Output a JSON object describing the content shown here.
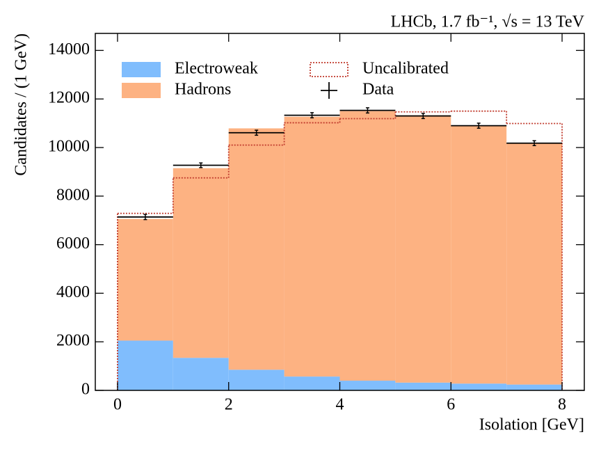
{
  "chart_data": {
    "type": "histogram",
    "title": "LHCb, 1.7 fb⁻¹, √s = 13 TeV",
    "x_label": "Isolation [GeV]",
    "y_label": "Candidates / (1 GeV)",
    "bins": [
      0,
      1,
      2,
      3,
      4,
      5,
      6,
      7,
      8
    ],
    "series": [
      {
        "name": "Electroweak",
        "color": "#80bdfd",
        "style": "stacked",
        "values": [
          2050,
          1340,
          850,
          570,
          400,
          320,
          280,
          240
        ]
      },
      {
        "name": "Hadrons",
        "color": "#fdb282",
        "style": "stacked",
        "values": [
          5010,
          7810,
          9940,
          10700,
          11100,
          11010,
          10620,
          9940
        ]
      },
      {
        "name": "Uncalibrated",
        "color": "#c0392b",
        "style": "step",
        "values": [
          7290,
          8750,
          10100,
          11020,
          11190,
          11470,
          11500,
          10990
        ]
      },
      {
        "name": "Data",
        "color": "#000000",
        "style": "errorbar",
        "values": [
          7140,
          9270,
          10610,
          11330,
          11530,
          11300,
          10900,
          10180
        ],
        "errors": [
          107,
          96,
          103,
          106,
          107,
          106,
          104,
          101
        ]
      }
    ],
    "xlim": [
      -0.4,
      8.4
    ],
    "ylim": [
      0,
      14700
    ],
    "xticks": [
      0,
      2,
      4,
      6,
      8
    ],
    "yticks": [
      0,
      2000,
      4000,
      6000,
      8000,
      10000,
      12000,
      14000
    ],
    "legend": "upper left"
  }
}
